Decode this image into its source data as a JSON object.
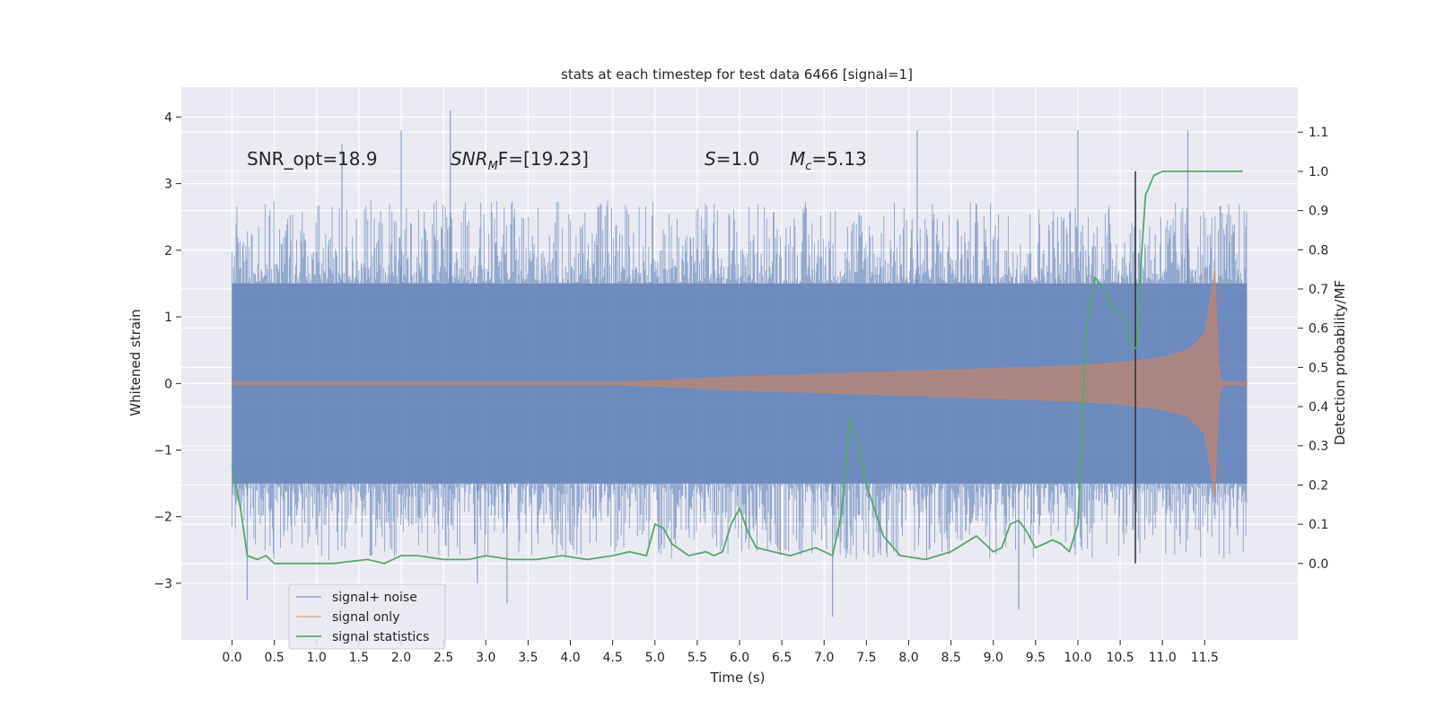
{
  "chart_data": {
    "type": "line",
    "title": "stats at each timestep for test data 6466 [signal=1]",
    "xlabel": "Time (s)",
    "ylabel_left": "Whitened strain",
    "ylabel_right": "Detection probability/MF",
    "xlim": [
      -0.6,
      12.6
    ],
    "ylim_left": [
      -3.85,
      4.45
    ],
    "ylim_right": [
      -0.195,
      1.215
    ],
    "x_ticks": [
      "0.0",
      "0.5",
      "1.0",
      "1.5",
      "2.0",
      "2.5",
      "3.0",
      "3.5",
      "4.0",
      "4.5",
      "5.0",
      "5.5",
      "6.0",
      "6.5",
      "7.0",
      "7.5",
      "8.0",
      "8.5",
      "9.0",
      "9.5",
      "10.0",
      "10.5",
      "11.0",
      "11.5"
    ],
    "y_ticks_left": [
      "−3",
      "−2",
      "−1",
      "0",
      "1",
      "2",
      "3",
      "4"
    ],
    "y_ticks_right": [
      "0.0",
      "0.1",
      "0.2",
      "0.3",
      "0.4",
      "0.5",
      "0.6",
      "0.7",
      "0.8",
      "0.9",
      "1.0",
      "1.1"
    ],
    "grid": true,
    "legend_placement": "lower-left",
    "annotations": {
      "snr_opt": "SNR_opt=18.9",
      "snr_mf_sym": "SNR",
      "snr_mf_sub": "M",
      "snr_mf_rest": "F=[19.23]",
      "s_sym": "S",
      "s_rest": "=1.0",
      "mc_sym": "M",
      "mc_sub": "c",
      "mc_rest": "=5.13"
    },
    "vertical_marker_x": 10.68,
    "series": [
      {
        "name": "signal+ noise",
        "color": "#4c72b0",
        "style": "noise band",
        "x_range": [
          0.0,
          12.0
        ],
        "typical_range": [
          -1.5,
          1.5
        ],
        "notable_peaks_x": [
          1.3,
          2.0,
          2.58,
          8.1,
          10.0,
          11.3
        ],
        "notable_peaks_y": [
          3.6,
          3.8,
          4.1,
          3.8,
          3.8,
          3.8
        ],
        "notable_troughs_x": [
          0.18,
          2.9,
          3.25,
          7.1,
          9.3
        ],
        "notable_troughs_y": [
          -3.25,
          -3.0,
          -3.3,
          -3.5,
          -3.4
        ]
      },
      {
        "name": "signal only",
        "color": "#dd8452",
        "style": "chirp envelope",
        "x": [
          0.0,
          4.5,
          5.0,
          6.0,
          7.0,
          8.0,
          9.0,
          10.0,
          10.5,
          11.0,
          11.3,
          11.5,
          11.62,
          11.66,
          11.7,
          12.0
        ],
        "amplitude": [
          0.02,
          0.02,
          0.04,
          0.1,
          0.14,
          0.18,
          0.22,
          0.27,
          0.31,
          0.39,
          0.5,
          0.75,
          1.7,
          0.3,
          0.02,
          0.02
        ]
      },
      {
        "name": "signal statistics",
        "color": "#55a868",
        "style": "line (right axis)",
        "x": [
          0.0,
          0.1,
          0.18,
          0.3,
          0.4,
          0.5,
          0.8,
          1.2,
          1.6,
          1.8,
          2.0,
          2.2,
          2.5,
          2.8,
          3.0,
          3.3,
          3.6,
          3.9,
          4.2,
          4.5,
          4.7,
          4.9,
          5.0,
          5.1,
          5.2,
          5.4,
          5.6,
          5.7,
          5.8,
          5.9,
          6.0,
          6.1,
          6.2,
          6.4,
          6.6,
          6.9,
          7.1,
          7.2,
          7.3,
          7.33,
          7.4,
          7.5,
          7.7,
          7.9,
          8.2,
          8.5,
          8.8,
          8.9,
          9.0,
          9.1,
          9.2,
          9.3,
          9.4,
          9.5,
          9.6,
          9.7,
          9.8,
          9.9,
          10.0,
          10.1,
          10.15,
          10.2,
          10.3,
          10.4,
          10.5,
          10.55,
          10.62,
          10.65,
          10.7,
          10.75,
          10.8,
          10.9,
          11.0,
          11.95
        ],
        "values": [
          0.25,
          0.14,
          0.02,
          0.01,
          0.02,
          0.0,
          0.0,
          0.0,
          0.01,
          0.0,
          0.02,
          0.02,
          0.01,
          0.01,
          0.02,
          0.01,
          0.01,
          0.02,
          0.01,
          0.02,
          0.03,
          0.02,
          0.1,
          0.09,
          0.05,
          0.02,
          0.03,
          0.02,
          0.03,
          0.1,
          0.14,
          0.08,
          0.04,
          0.03,
          0.02,
          0.04,
          0.02,
          0.12,
          0.37,
          0.36,
          0.3,
          0.2,
          0.07,
          0.02,
          0.01,
          0.03,
          0.07,
          0.05,
          0.03,
          0.04,
          0.1,
          0.11,
          0.08,
          0.04,
          0.05,
          0.06,
          0.05,
          0.03,
          0.1,
          0.6,
          0.66,
          0.73,
          0.7,
          0.65,
          0.64,
          0.62,
          0.56,
          0.55,
          0.55,
          0.78,
          0.94,
          0.99,
          1.0,
          1.0
        ]
      }
    ]
  }
}
